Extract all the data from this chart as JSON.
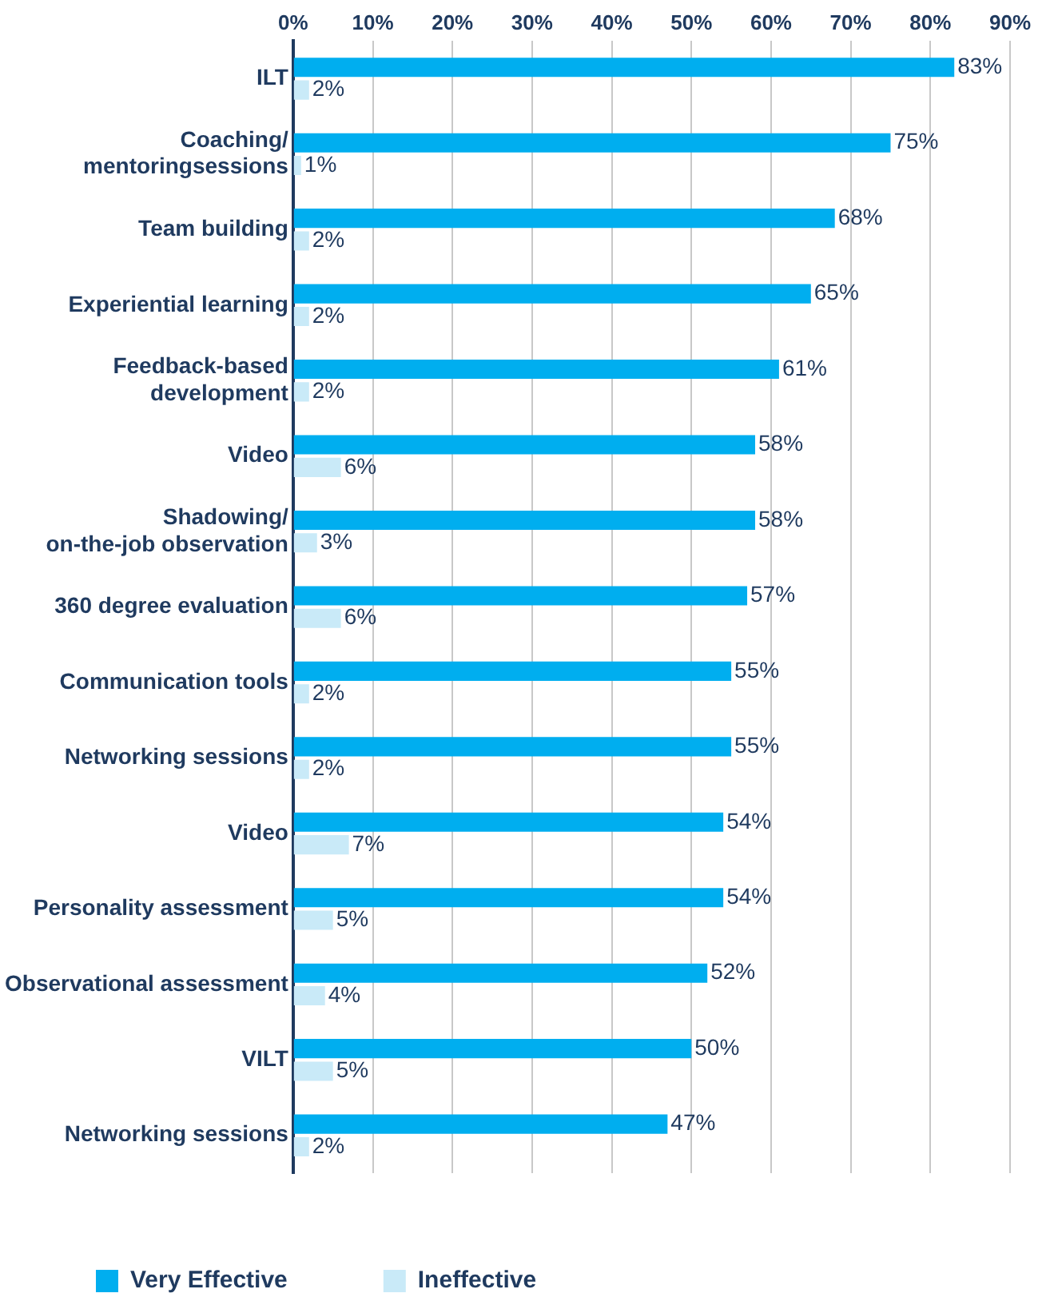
{
  "chart_data": {
    "type": "bar",
    "orientation": "horizontal",
    "categories": [
      "ILT",
      "Coaching/\nmentoringsessions",
      "Team building",
      "Experiential learning",
      "Feedback-based\ndevelopment",
      "Video",
      "Shadowing/\non-the-job observation",
      "360 degree evaluation",
      "Communication tools",
      "Networking sessions",
      "Video",
      "Personality assessment",
      "Observational assessment",
      "VILT",
      "Networking sessions"
    ],
    "series": [
      {
        "name": "Very Effective",
        "color": "#00aeef",
        "values": [
          83,
          75,
          68,
          65,
          61,
          58,
          58,
          57,
          55,
          55,
          54,
          54,
          52,
          50,
          47
        ],
        "value_labels": [
          "83%",
          "75%",
          "68%",
          "65%",
          "61%",
          "58%",
          "58%",
          "57%",
          "55%",
          "55%",
          "54%",
          "54%",
          "52%",
          "50%",
          "47%"
        ]
      },
      {
        "name": "Ineffective",
        "color": "#c9eaf8",
        "values": [
          2,
          1,
          2,
          2,
          2,
          6,
          3,
          6,
          2,
          2,
          7,
          5,
          4,
          5,
          2
        ],
        "value_labels": [
          "2%",
          "1%",
          "2%",
          "2%",
          "2%",
          "6%",
          "3%",
          "6%",
          "2%",
          "2%",
          "7%",
          "5%",
          "4%",
          "5%",
          "2%"
        ]
      }
    ],
    "xlim": [
      0,
      90
    ],
    "xticks": [
      {
        "value": 0,
        "label": "0%"
      },
      {
        "value": 10,
        "label": "10%"
      },
      {
        "value": 20,
        "label": "20%"
      },
      {
        "value": 30,
        "label": "30%"
      },
      {
        "value": 40,
        "label": "40%"
      },
      {
        "value": 50,
        "label": "50%"
      },
      {
        "value": 60,
        "label": "60%"
      },
      {
        "value": 70,
        "label": "70%"
      },
      {
        "value": 80,
        "label": "80%"
      },
      {
        "value": 90,
        "label": "90%"
      }
    ],
    "grid": "x",
    "legend": "bottom"
  }
}
